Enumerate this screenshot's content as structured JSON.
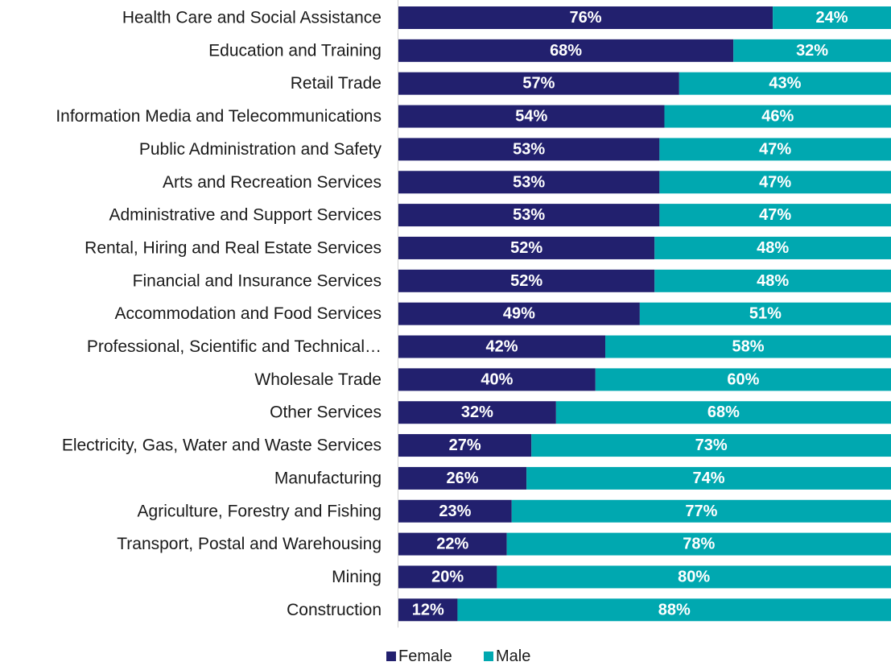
{
  "chart_data": {
    "type": "bar",
    "orientation": "horizontal",
    "stacked": "100%",
    "categories": [
      "Health Care and Social Assistance",
      "Education and Training",
      "Retail Trade",
      "Information Media and Telecommunications",
      "Public Administration and Safety",
      "Arts and Recreation Services",
      "Administrative and Support Services",
      "Rental, Hiring and Real Estate Services",
      "Financial and Insurance Services",
      "Accommodation and Food Services",
      "Professional, Scientific and Technical…",
      "Wholesale Trade",
      "Other Services",
      "Electricity, Gas, Water and Waste Services",
      "Manufacturing",
      "Agriculture, Forestry and Fishing",
      "Transport, Postal and Warehousing",
      "Mining",
      "Construction"
    ],
    "series": [
      {
        "name": "Female",
        "color": "#22206e",
        "values": [
          76,
          68,
          57,
          54,
          53,
          53,
          53,
          52,
          52,
          49,
          42,
          40,
          32,
          27,
          26,
          23,
          22,
          20,
          12
        ],
        "labels": [
          "76%",
          "68%",
          "57%",
          "54%",
          "53%",
          "53%",
          "53%",
          "52%",
          "52%",
          "49%",
          "42%",
          "40%",
          "32%",
          "27%",
          "26%",
          "23%",
          "22%",
          "20%",
          "12%"
        ]
      },
      {
        "name": "Male",
        "color": "#00a8b0",
        "values": [
          24,
          32,
          43,
          46,
          47,
          47,
          47,
          48,
          48,
          51,
          58,
          60,
          68,
          73,
          74,
          77,
          78,
          80,
          88
        ],
        "labels": [
          "24%",
          "32%",
          "43%",
          "46%",
          "47%",
          "47%",
          "47%",
          "48%",
          "48%",
          "51%",
          "58%",
          "60%",
          "68%",
          "73%",
          "74%",
          "77%",
          "78%",
          "80%",
          "88%"
        ]
      }
    ],
    "xlim": [
      0,
      100
    ],
    "legend": {
      "position": "bottom",
      "entries": [
        "Female",
        "Male"
      ]
    },
    "grid": false
  }
}
